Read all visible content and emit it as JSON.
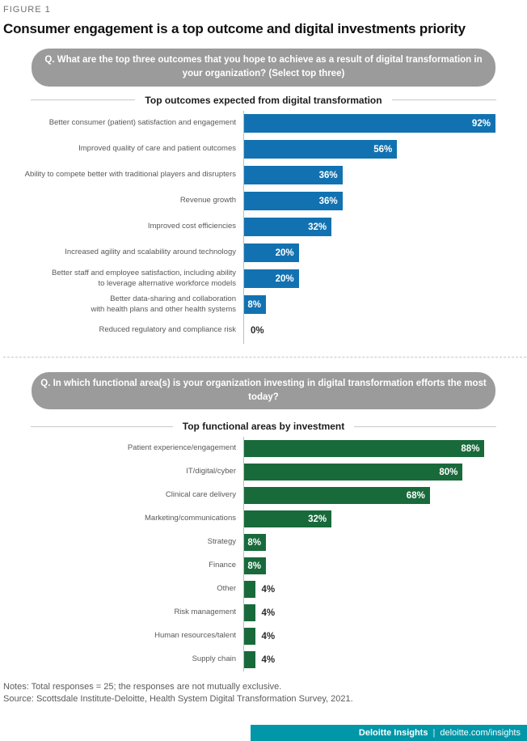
{
  "header": {
    "figure_label": "FIGURE 1",
    "title": "Consumer engagement is a top outcome and digital investments priority"
  },
  "sections": [
    {
      "question": "Q. What are the top three outcomes that you hope to achieve as a result of digital transformation in your organization? (Select top three)"
    },
    {
      "question": "Q. In which functional area(s) is your organization investing in digital transformation efforts the most today?"
    }
  ],
  "chart_data": [
    {
      "type": "bar",
      "orientation": "horizontal",
      "title": "Top outcomes expected from digital transformation",
      "categories": [
        "Better consumer (patient) satisfaction and engagement",
        "Improved quality of care and patient outcomes",
        "Ability to compete better with traditional players and disrupters",
        "Revenue growth",
        "Improved cost efficiencies",
        "Increased agility and scalability around technology",
        "Better staff and employee satisfaction, including ability\nto leverage alternative workforce models",
        "Better data-sharing and collaboration\nwith health plans and other health systems",
        "Reduced regulatory and compliance risk"
      ],
      "values": [
        92,
        56,
        36,
        36,
        32,
        20,
        20,
        8,
        0
      ],
      "unit": "%",
      "bar_color": "#1272b1",
      "xlim": [
        0,
        100
      ],
      "grid": false,
      "value_labels": "end-of-bar"
    },
    {
      "type": "bar",
      "orientation": "horizontal",
      "title": "Top functional areas by investment",
      "categories": [
        "Patient experience/engagement",
        "IT/digital/cyber",
        "Clinical care delivery",
        "Marketing/communications",
        "Strategy",
        "Finance",
        "Other",
        "Risk management",
        "Human resources/talent",
        "Supply chain"
      ],
      "values": [
        88,
        80,
        68,
        32,
        8,
        8,
        4,
        4,
        4,
        4
      ],
      "unit": "%",
      "bar_color": "#186a3b",
      "xlim": [
        0,
        100
      ],
      "grid": false,
      "value_labels": "end-of-bar"
    }
  ],
  "footer": {
    "notes": "Notes: Total responses = 25; the responses are not mutually exclusive.",
    "source": "Source: Scottsdale Institute-Deloitte, Health System Digital Transformation Survey, 2021.",
    "brand": "Deloitte Insights",
    "separator": "|",
    "site": "deloitte.com/insights"
  },
  "colors": {
    "bar_blue": "#1272b1",
    "bar_green": "#186a3b",
    "question_pill_gray": "#9b9b9b",
    "brand_band_teal": "#0097a9",
    "axis_line": "#bdbdbd",
    "category_text": "#58595b"
  }
}
